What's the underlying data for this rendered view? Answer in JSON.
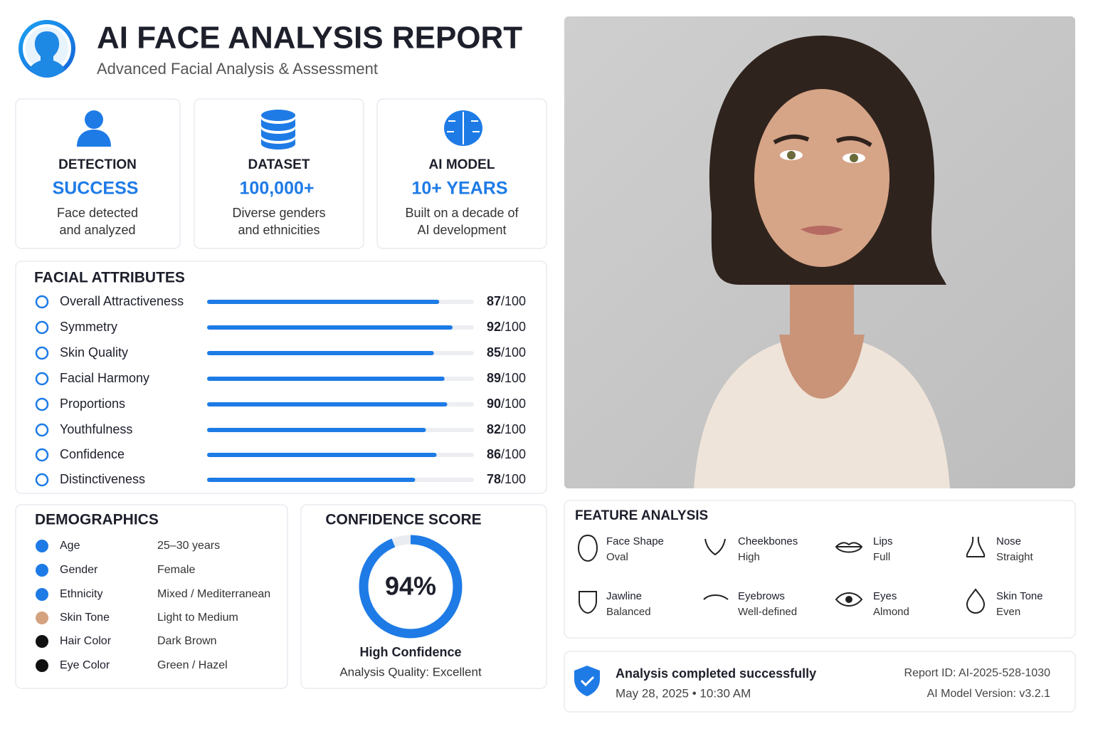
{
  "header": {
    "title": "AI FACE ANALYSIS REPORT",
    "subtitle": "Advanced Facial Analysis & Assessment"
  },
  "cards": [
    {
      "label": "DETECTION",
      "value": "SUCCESS",
      "description": [
        "Face detected",
        "and analyzed"
      ]
    },
    {
      "label": "DATASET",
      "value": "100,000+",
      "description": [
        "Diverse genders",
        "and ethnicities"
      ]
    },
    {
      "label": "AI MODEL",
      "value": "10+ YEARS",
      "description": [
        "Built on a decade of",
        "AI development"
      ]
    }
  ],
  "facial_attributes": {
    "title": "FACIAL ATTRIBUTES",
    "score_suffix": "/100",
    "scale_max": 100,
    "items": [
      {
        "label": "Overall Attractiveness",
        "score": 87
      },
      {
        "label": "Symmetry",
        "score": 92
      },
      {
        "label": "Skin Quality",
        "score": 85
      },
      {
        "label": "Facial Harmony",
        "score": 89
      },
      {
        "label": "Proportions",
        "score": 90
      },
      {
        "label": "Youthfulness",
        "score": 82
      },
      {
        "label": "Confidence",
        "score": 86
      },
      {
        "label": "Distinctiveness",
        "score": 78
      }
    ]
  },
  "demographics": {
    "title": "DEMOGRAPHICS",
    "rows": [
      [
        "Age",
        "25–30 years"
      ],
      [
        "Gender",
        "Female"
      ],
      [
        "Ethnicity",
        "Mixed / Mediterranean"
      ],
      [
        "Skin Tone",
        "Light to Medium"
      ],
      [
        "Hair Color",
        "Dark Brown"
      ],
      [
        "Eye Color",
        "Green / Hazel"
      ]
    ]
  },
  "confidence": {
    "title": "CONFIDENCE SCORE",
    "score": {
      "value": 94,
      "label": "94%"
    },
    "level": "High Confidence",
    "quality": "Analysis Quality: Excellent"
  },
  "feature_analysis": {
    "title": "FEATURE ANALYSIS",
    "items": [
      {
        "feature": "Face Shape",
        "result": "Oval"
      },
      {
        "feature": "Cheekbones",
        "result": "High"
      },
      {
        "feature": "Lips",
        "result": "Full"
      },
      {
        "feature": "Nose",
        "result": "Straight"
      },
      {
        "feature": "Jawline",
        "result": "Balanced"
      },
      {
        "feature": "Eyebrows",
        "result": "Well-defined"
      },
      {
        "feature": "Eyes",
        "result": "Almond"
      },
      {
        "feature": "Skin Tone",
        "result": "Even"
      }
    ]
  },
  "footer": {
    "status": "Analysis completed successfully",
    "timestamp": "May 28, 2025 • 10:30 AM",
    "report_id": "Report ID: AI-2025-528-1030",
    "model_version": "AI Model Version: v3.2.1"
  }
}
